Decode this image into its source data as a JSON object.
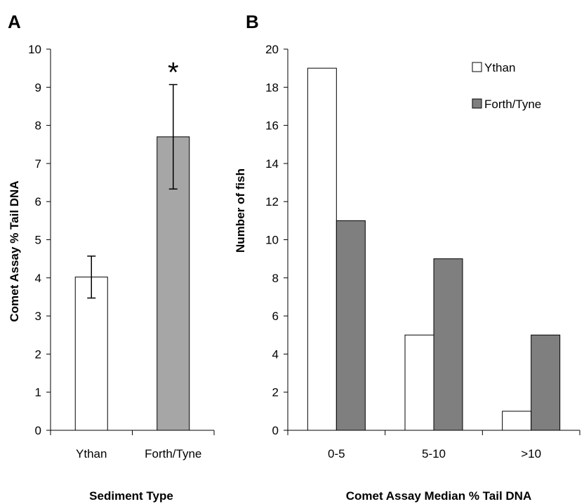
{
  "chart_data": [
    {
      "panel_label": "A",
      "type": "bar",
      "categories": [
        "Ythan",
        "Forth/Tyne"
      ],
      "values": [
        4.02,
        7.7
      ],
      "error": [
        0.55,
        1.37
      ],
      "colors": [
        "#ffffff",
        "#a6a6a6"
      ],
      "xlabel": "Sediment Type",
      "ylabel": "Comet Assay % Tail DNA",
      "ylim": [
        0,
        10
      ],
      "yticks": [
        "0",
        "1",
        "2",
        "3",
        "4",
        "5",
        "6",
        "7",
        "8",
        "9",
        "10"
      ],
      "annotation": {
        "category": "Forth/Tyne",
        "text": "*"
      },
      "grid": false
    },
    {
      "panel_label": "B",
      "type": "bar",
      "categories": [
        "0-5",
        "5-10",
        ">10"
      ],
      "series": [
        {
          "name": "Ythan",
          "values": [
            19,
            5,
            1
          ],
          "color": "#ffffff"
        },
        {
          "name": "Forth/Tyne",
          "values": [
            11,
            9,
            5
          ],
          "color": "#7f7f7f"
        }
      ],
      "xlabel": "Comet Assay Median % Tail DNA",
      "ylabel": "Number of fish",
      "ylim": [
        0,
        20
      ],
      "yticks": [
        "0",
        "2",
        "4",
        "6",
        "8",
        "10",
        "12",
        "14",
        "16",
        "18",
        "20"
      ],
      "legend": "top-right",
      "grid": false
    }
  ]
}
